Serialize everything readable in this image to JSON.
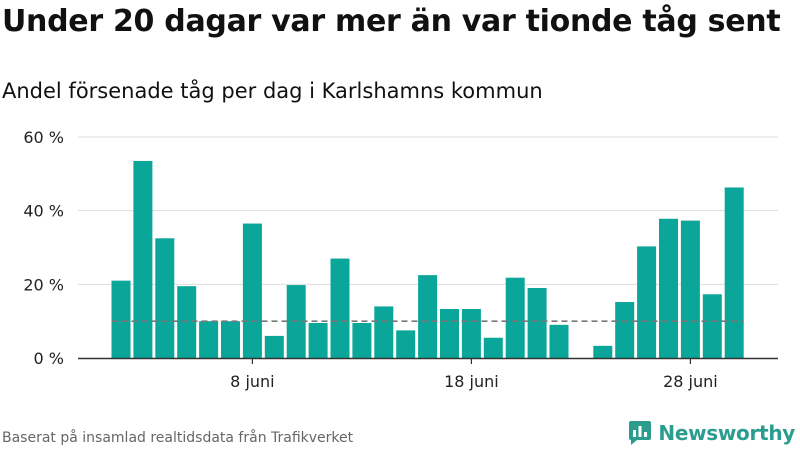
{
  "title": "Under 20 dagar var mer än var tionde tåg sent",
  "subtitle": "Andel försenade tåg per dag i Karlshamns kommun",
  "source": "Baserat på insamlad realtidsdata från Trafikverket",
  "brand": "Newsworthy",
  "colors": {
    "bar": "#0ba69a",
    "threshold": "#777777",
    "grid": "#dddddd",
    "axis": "#333333",
    "brand": "#2a9d8f"
  },
  "icons": {
    "logo": "newsworthy-logo-icon"
  },
  "chart_data": {
    "type": "bar",
    "unit": "%",
    "ylim": [
      0,
      60
    ],
    "yticks": [
      0,
      20,
      40,
      60
    ],
    "ytick_labels": [
      "0 %",
      "20 %",
      "40 %",
      "60 %"
    ],
    "xticks": [
      {
        "label": "8 juni",
        "day": 8
      },
      {
        "label": "18 juni",
        "day": 18
      },
      {
        "label": "28 juni",
        "day": 28
      }
    ],
    "threshold": 10,
    "grid": true,
    "legend": "none",
    "days": [
      2,
      3,
      4,
      5,
      6,
      7,
      8,
      9,
      10,
      11,
      12,
      13,
      14,
      15,
      16,
      17,
      18,
      19,
      20,
      21,
      22,
      23,
      24,
      25,
      26,
      27,
      28,
      29,
      30
    ],
    "values": [
      21,
      53.5,
      32.5,
      19.5,
      10,
      10,
      36.5,
      6,
      19.8,
      9.5,
      27,
      9.5,
      14,
      7.5,
      22.5,
      13.3,
      13.3,
      5.5,
      21.8,
      19,
      9,
      null,
      3.3,
      15.2,
      30.3,
      37.8,
      37.3,
      17.3,
      46.3
    ]
  }
}
